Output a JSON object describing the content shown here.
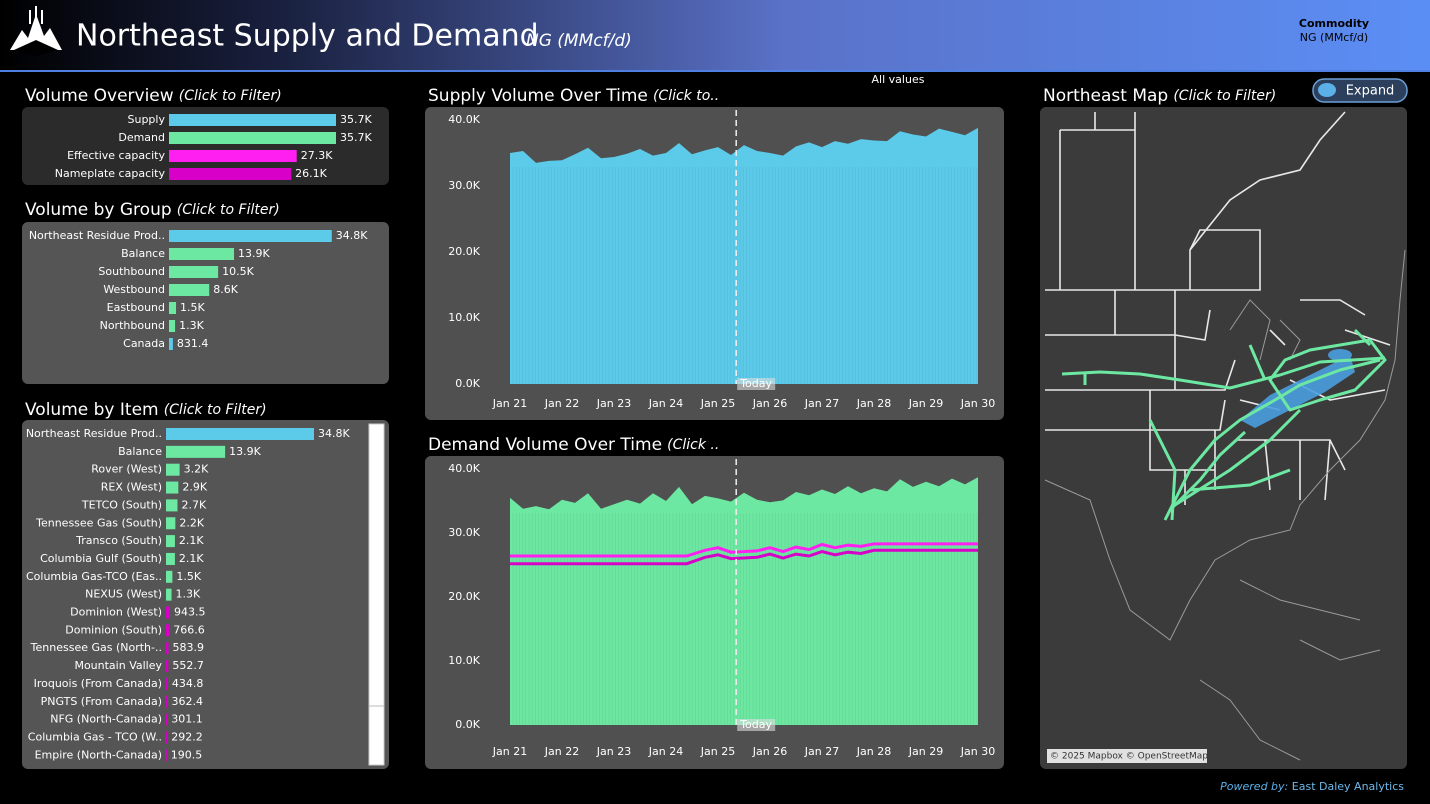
{
  "header": {
    "title": "Northeast Supply and Demand",
    "unit": "NG (MMcf/d)",
    "filter_label": "Commodity",
    "filter_value": "NG (MMcf/d)",
    "all_values": "All values"
  },
  "chart_data": [
    {
      "type": "hbar",
      "title": "Volume Overview",
      "hint": "(Click to Filter)",
      "categories": [
        "Supply",
        "Demand",
        "Effective capacity",
        "Nameplate capacity"
      ],
      "values": [
        35700,
        35700,
        27300,
        26100
      ],
      "value_labels": [
        "35.7K",
        "35.7K",
        "27.3K",
        "26.1K"
      ],
      "colors": [
        "#5ccbea",
        "#6de8a2",
        "#ff1ff0",
        "#d800c8"
      ]
    },
    {
      "type": "hbar",
      "title": "Volume by Group",
      "hint": "(Click to Filter)",
      "categories": [
        "Northeast Residue Prod..",
        "Balance",
        "Southbound",
        "Westbound",
        "Eastbound",
        "Northbound",
        "Canada"
      ],
      "values": [
        34800,
        13900,
        10500,
        8600,
        1500,
        1300,
        831.4
      ],
      "value_labels": [
        "34.8K",
        "13.9K",
        "10.5K",
        "8.6K",
        "1.5K",
        "1.3K",
        "831.4"
      ],
      "colors": [
        "#5ccbea",
        "#6de8a2",
        "#6de8a2",
        "#6de8a2",
        "#6de8a2",
        "#6de8a2",
        "#5ccbea"
      ]
    },
    {
      "type": "hbar",
      "title": "Volume by Item",
      "hint": "(Click to Filter)",
      "categories": [
        "Northeast Residue Prod..",
        "Balance",
        "Rover (West)",
        "REX (West)",
        "TETCO (South)",
        "Tennessee Gas (South)",
        "Transco (South)",
        "Columbia Gulf (South)",
        "Columbia Gas-TCO (Eas..",
        "NEXUS (West)",
        "Dominion (West)",
        "Dominion (South)",
        "Tennessee Gas (North-..",
        "Mountain Valley",
        "Iroquois (From Canada)",
        "PNGTS (From Canada)",
        "NFG (North-Canada)",
        "Columbia Gas - TCO (W..",
        "Empire (North-Canada)"
      ],
      "values": [
        34800,
        13900,
        3200,
        2900,
        2700,
        2200,
        2100,
        2100,
        1500,
        1300,
        943.5,
        766.6,
        583.9,
        552.7,
        434.8,
        362.4,
        301.1,
        292.2,
        190.5
      ],
      "value_labels": [
        "34.8K",
        "13.9K",
        "3.2K",
        "2.9K",
        "2.7K",
        "2.2K",
        "2.1K",
        "2.1K",
        "1.5K",
        "1.3K",
        "943.5",
        "766.6",
        "583.9",
        "552.7",
        "434.8",
        "362.4",
        "301.1",
        "292.2",
        "190.5"
      ],
      "colors": [
        "#5ccbea",
        "#6de8a2",
        "#6de8a2",
        "#6de8a2",
        "#6de8a2",
        "#6de8a2",
        "#6de8a2",
        "#6de8a2",
        "#6de8a2",
        "#6de8a2",
        "#d800c8",
        "#d800c8",
        "#d800c8",
        "#d800c8",
        "#d800c8",
        "#d800c8",
        "#d800c8",
        "#d800c8",
        "#d800c8"
      ]
    },
    {
      "type": "area",
      "title": "Supply Volume Over Time",
      "hint": "(Click to..",
      "x": [
        0,
        0.25,
        0.5,
        0.75,
        1,
        1.25,
        1.5,
        1.75,
        2,
        2.25,
        2.5,
        2.75,
        3,
        3.25,
        3.5,
        3.75,
        4,
        4.25,
        4.5,
        4.75,
        5,
        5.25,
        5.5,
        5.75,
        6,
        6.25,
        6.5,
        6.75,
        7,
        7.25,
        7.5,
        7.75,
        8,
        8.25,
        8.5,
        8.75,
        9
      ],
      "series": [
        {
          "color": "#5ccbea",
          "values": [
            35000,
            35300,
            33500,
            33800,
            33900,
            34800,
            35800,
            34200,
            34400,
            34900,
            35600,
            34600,
            35000,
            36500,
            34800,
            35400,
            35900,
            34700,
            36200,
            35300,
            35000,
            34600,
            36000,
            36600,
            35900,
            36800,
            36400,
            37100,
            36900,
            36800,
            38300,
            37800,
            37500,
            38700,
            38200,
            37700,
            38800
          ]
        }
      ],
      "annotation": {
        "label": "Today",
        "x": 4.35
      },
      "xlim": [
        0,
        9
      ],
      "xticks": [
        {
          "value": 0,
          "label": "Jan 21"
        },
        {
          "value": 1,
          "label": "Jan 22"
        },
        {
          "value": 2,
          "label": "Jan 23"
        },
        {
          "value": 3,
          "label": "Jan 24"
        },
        {
          "value": 4,
          "label": "Jan 25"
        },
        {
          "value": 5,
          "label": "Jan 26"
        },
        {
          "value": 6,
          "label": "Jan 27"
        },
        {
          "value": 7,
          "label": "Jan 28"
        },
        {
          "value": 8,
          "label": "Jan 29"
        },
        {
          "value": 9,
          "label": "Jan 30"
        }
      ],
      "ylim": [
        0,
        40000
      ],
      "yticks": [
        {
          "value": 0,
          "label": "0.0K"
        },
        {
          "value": 10000,
          "label": "10.0K"
        },
        {
          "value": 20000,
          "label": "20.0K"
        },
        {
          "value": 30000,
          "label": "30.0K"
        },
        {
          "value": 40000,
          "label": "40.0K"
        }
      ]
    },
    {
      "type": "area",
      "title": "Demand Volume Over Time",
      "hint": "(Click ..",
      "x": [
        0,
        0.25,
        0.5,
        0.75,
        1,
        1.25,
        1.5,
        1.75,
        2,
        2.25,
        2.5,
        2.75,
        3,
        3.25,
        3.5,
        3.75,
        4,
        4.25,
        4.5,
        4.75,
        5,
        5.25,
        5.5,
        5.75,
        6,
        6.25,
        6.5,
        6.75,
        7,
        7.25,
        7.5,
        7.75,
        8,
        8.25,
        8.5,
        8.75,
        9
      ],
      "series": [
        {
          "color": "#6de8a2",
          "values": [
            35500,
            33800,
            34200,
            33700,
            35200,
            34700,
            36200,
            33800,
            34500,
            35200,
            34600,
            36200,
            35000,
            37200,
            34500,
            35800,
            35400,
            34900,
            36300,
            35200,
            34800,
            35100,
            36400,
            35900,
            36800,
            36100,
            37300,
            36200,
            37000,
            36500,
            38400,
            37200,
            38000,
            37300,
            38500,
            37600,
            38700
          ]
        },
        {
          "color": "#ff1ff0",
          "x": [
            0,
            3.4,
            3.75,
            4,
            4.25,
            4.5,
            4.75,
            5,
            5.25,
            5.5,
            5.75,
            6,
            6.25,
            6.5,
            6.75,
            7,
            9
          ],
          "values": [
            26400,
            26400,
            27300,
            27700,
            27000,
            27100,
            27200,
            27700,
            27100,
            27800,
            27400,
            28200,
            27700,
            28100,
            27900,
            28300,
            28300
          ]
        },
        {
          "color": "#d800c8",
          "x": [
            0,
            3.4,
            3.75,
            4,
            4.25,
            4.5,
            4.75,
            5,
            5.25,
            5.5,
            5.75,
            6,
            6.25,
            6.5,
            6.75,
            7,
            9
          ],
          "values": [
            25200,
            25200,
            26200,
            26600,
            26000,
            26100,
            26200,
            26700,
            26100,
            26700,
            26400,
            27100,
            26600,
            27000,
            26800,
            27300,
            27300
          ]
        }
      ],
      "annotation": {
        "label": "Today",
        "x": 4.35
      },
      "xlim": [
        0,
        9
      ],
      "xticks": [
        {
          "value": 0,
          "label": "Jan 21"
        },
        {
          "value": 1,
          "label": "Jan 22"
        },
        {
          "value": 2,
          "label": "Jan 23"
        },
        {
          "value": 3,
          "label": "Jan 24"
        },
        {
          "value": 4,
          "label": "Jan 25"
        },
        {
          "value": 5,
          "label": "Jan 26"
        },
        {
          "value": 6,
          "label": "Jan 27"
        },
        {
          "value": 7,
          "label": "Jan 28"
        },
        {
          "value": 8,
          "label": "Jan 29"
        },
        {
          "value": 9,
          "label": "Jan 30"
        }
      ],
      "ylim": [
        0,
        40000
      ],
      "yticks": [
        {
          "value": 0,
          "label": "0.0K"
        },
        {
          "value": 10000,
          "label": "10.0K"
        },
        {
          "value": 20000,
          "label": "20.0K"
        },
        {
          "value": 30000,
          "label": "30.0K"
        },
        {
          "value": 40000,
          "label": "40.0K"
        }
      ]
    }
  ],
  "map": {
    "title": "Northeast Map",
    "hint": "(Click to Filter)",
    "button": "Expand",
    "attribution": "© 2025 Mapbox © OpenStreetMap"
  },
  "footer": {
    "prefix": "Powered by:",
    "text": "East Daley Analytics"
  }
}
